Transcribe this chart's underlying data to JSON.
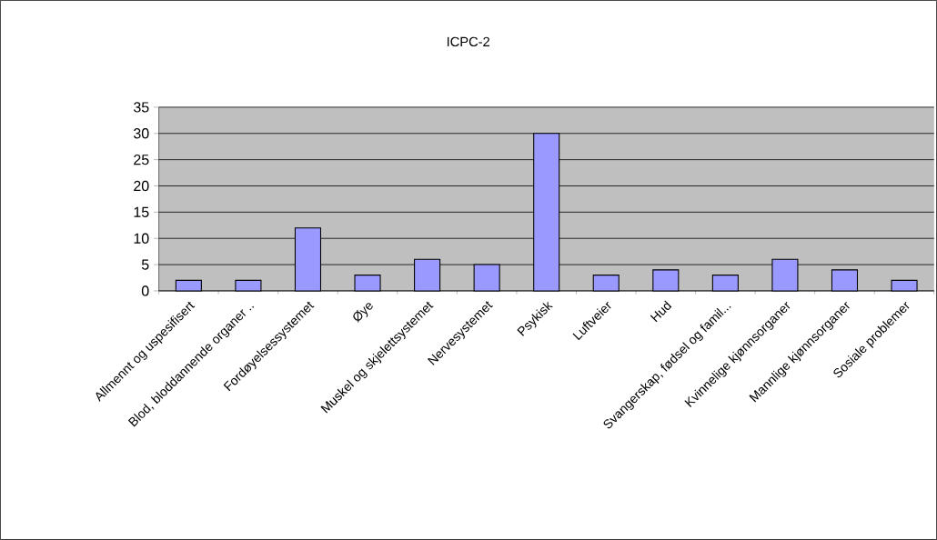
{
  "chart_data": {
    "type": "bar",
    "title": "ICPC-2",
    "categories": [
      "Allmennt og uspesifisert",
      "Blod, bloddannende organer ..",
      "Fordøyelsessystemet",
      "Øye",
      "Muskel og skjelettsystemet",
      "Nervesystemet",
      "Psykisk",
      "Luftveier",
      "Hud",
      "Svangerskap, fødsel og famil...",
      "Kvinnelige kjønnsorganer",
      "Mannlige kjønnsorganer",
      "Sosiale problemer"
    ],
    "values": [
      2,
      2,
      12,
      3,
      6,
      5,
      30,
      3,
      4,
      3,
      6,
      4,
      2
    ],
    "color": "#9999ff",
    "ylim": [
      0,
      35
    ],
    "yticks": [
      0,
      5,
      10,
      15,
      20,
      25,
      30,
      35
    ],
    "grid": "y"
  }
}
